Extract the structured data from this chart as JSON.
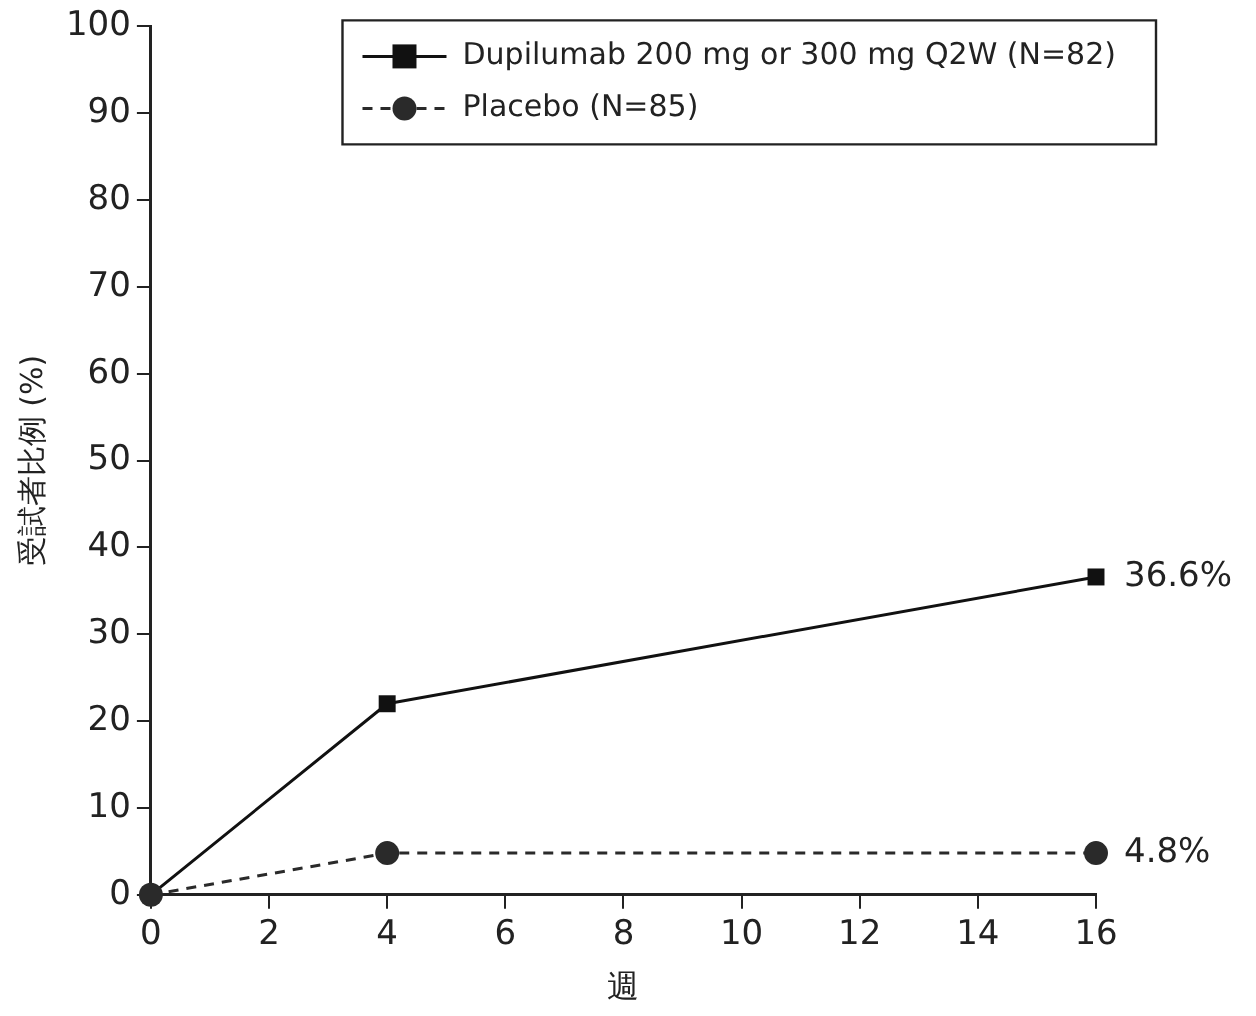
{
  "chart_data": {
    "type": "line",
    "xlabel": "週",
    "ylabel": "受試者比例 (%)",
    "x": [
      0,
      4,
      16
    ],
    "series": [
      {
        "name": "Dupilumab 200 mg or 300 mg Q2W (N=82)",
        "color": "#111111",
        "values": [
          0,
          22,
          36.6
        ],
        "marker": "square",
        "line_style": "solid",
        "value_labels": [
          null,
          null,
          "36.6%"
        ]
      },
      {
        "name": "Placebo (N=85)",
        "color": "#2a2a2a",
        "values": [
          0,
          4.8,
          4.8
        ],
        "marker": "circle",
        "line_style": "dashed",
        "value_labels": [
          null,
          null,
          "4.8%"
        ]
      }
    ],
    "xlim": [
      0,
      16
    ],
    "xticks": [
      0,
      2,
      4,
      6,
      8,
      10,
      12,
      14,
      16
    ],
    "ylim": [
      0,
      100
    ],
    "yticks": [
      0,
      10,
      20,
      30,
      40,
      50,
      60,
      70,
      80,
      90,
      100
    ],
    "grid": false,
    "legend": "top right"
  }
}
